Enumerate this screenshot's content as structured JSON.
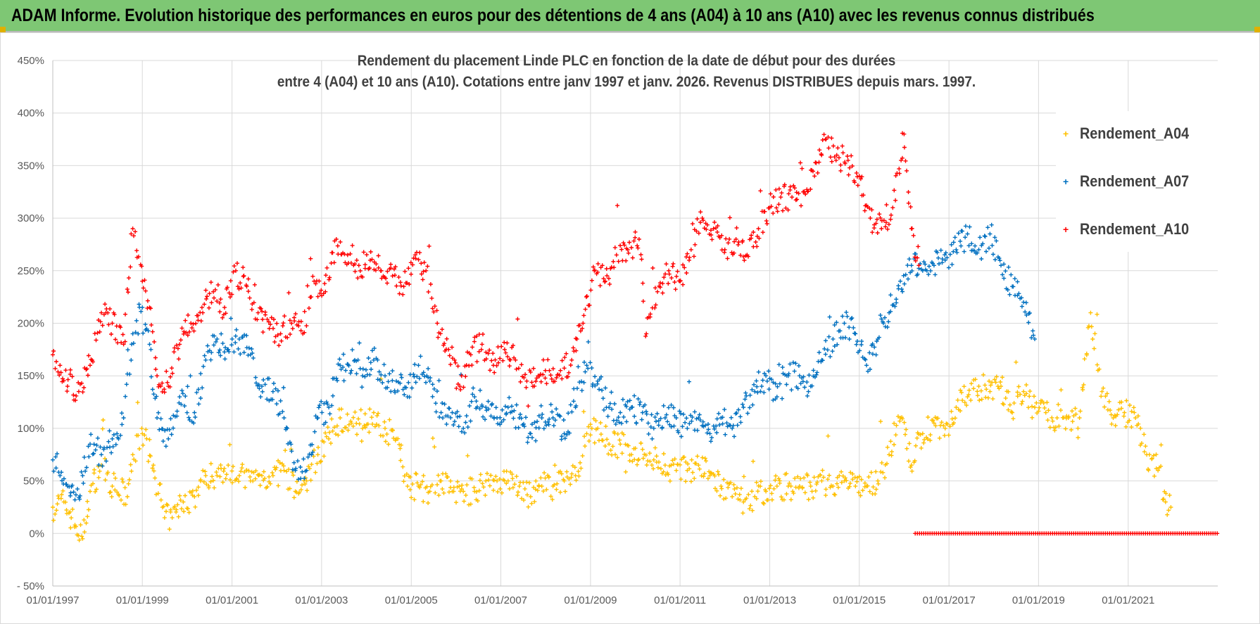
{
  "banner": {
    "title": "ADAM Informe. Evolution historique des performances en euros pour des détentions de 4 ans (A04) à 10 ans (A10) avec les revenus connus distribués"
  },
  "chart_data": {
    "type": "scatter",
    "title_line1": "Rendement du placement Linde PLC en fonction de la date de début pour des durées",
    "title_line2": "entre 4 (A04) et 10 ans (A10).  Cotations entre janv 1997 et janv. 2026. Revenus DISTRIBUES depuis mars. 1997.",
    "x_ticks": [
      "01/01/1997",
      "01/01/1999",
      "01/01/2001",
      "01/01/2003",
      "01/01/2005",
      "01/01/2007",
      "01/01/2009",
      "01/01/2011",
      "01/01/2013",
      "01/01/2015",
      "01/01/2017",
      "01/01/2019",
      "01/01/2021"
    ],
    "y_ticks": [
      "450%",
      "400%",
      "350%",
      "300%",
      "250%",
      "200%",
      "150%",
      "100%",
      "50%",
      "0%",
      "- 50%"
    ],
    "xlim": [
      "1997-01-01",
      "2023-01-01"
    ],
    "ylim": [
      -50,
      450
    ],
    "grid": true,
    "legend_position": "right",
    "series": [
      {
        "name": "Rendement_A04",
        "color": "#ffc000",
        "points": [
          [
            "1997-01-01",
            25
          ],
          [
            "1997-04-01",
            30
          ],
          [
            "1997-07-01",
            8
          ],
          [
            "1997-09-01",
            -5
          ],
          [
            "1997-11-01",
            40
          ],
          [
            "1998-02-01",
            65
          ],
          [
            "1998-05-01",
            45
          ],
          [
            "1998-09-01",
            35
          ],
          [
            "1998-10-15",
            75
          ],
          [
            "1999-01-01",
            95
          ],
          [
            "1999-04-01",
            65
          ],
          [
            "1999-07-01",
            15
          ],
          [
            "1999-09-01",
            15
          ],
          [
            "1999-12-01",
            30
          ],
          [
            "2000-03-01",
            35
          ],
          [
            "2000-06-01",
            55
          ],
          [
            "2000-09-01",
            55
          ],
          [
            "2000-12-01",
            65
          ],
          [
            "2001-03-01",
            55
          ],
          [
            "2001-06-01",
            50
          ],
          [
            "2001-09-01",
            55
          ],
          [
            "2001-12-01",
            55
          ],
          [
            "2002-03-01",
            60
          ],
          [
            "2002-06-01",
            40
          ],
          [
            "2002-09-01",
            50
          ],
          [
            "2002-12-01",
            75
          ],
          [
            "2003-03-01",
            90
          ],
          [
            "2003-06-01",
            110
          ],
          [
            "2003-09-01",
            105
          ],
          [
            "2003-12-01",
            100
          ],
          [
            "2004-03-01",
            115
          ],
          [
            "2004-06-01",
            100
          ],
          [
            "2004-09-01",
            90
          ],
          [
            "2004-12-01",
            45
          ],
          [
            "2005-03-01",
            45
          ],
          [
            "2005-06-01",
            40
          ],
          [
            "2005-09-01",
            50
          ],
          [
            "2005-12-01",
            40
          ],
          [
            "2006-03-01",
            40
          ],
          [
            "2006-06-01",
            40
          ],
          [
            "2006-09-01",
            50
          ],
          [
            "2006-12-01",
            50
          ],
          [
            "2007-03-01",
            50
          ],
          [
            "2007-06-01",
            45
          ],
          [
            "2007-09-01",
            35
          ],
          [
            "2007-12-01",
            45
          ],
          [
            "2008-03-01",
            45
          ],
          [
            "2008-06-01",
            50
          ],
          [
            "2008-09-01",
            55
          ],
          [
            "2008-12-01",
            95
          ],
          [
            "2009-03-01",
            100
          ],
          [
            "2009-06-01",
            85
          ],
          [
            "2009-09-01",
            85
          ],
          [
            "2009-12-01",
            75
          ],
          [
            "2010-03-01",
            80
          ],
          [
            "2010-06-01",
            70
          ],
          [
            "2010-09-01",
            65
          ],
          [
            "2010-12-01",
            60
          ],
          [
            "2011-03-01",
            60
          ],
          [
            "2011-06-01",
            65
          ],
          [
            "2011-09-01",
            55
          ],
          [
            "2011-12-01",
            45
          ],
          [
            "2012-03-01",
            35
          ],
          [
            "2012-06-01",
            30
          ],
          [
            "2012-09-01",
            35
          ],
          [
            "2012-12-01",
            40
          ],
          [
            "2013-03-01",
            45
          ],
          [
            "2013-06-01",
            45
          ],
          [
            "2013-09-01",
            45
          ],
          [
            "2013-12-01",
            45
          ],
          [
            "2014-03-01",
            50
          ],
          [
            "2014-06-01",
            45
          ],
          [
            "2014-09-01",
            50
          ],
          [
            "2014-12-01",
            45
          ],
          [
            "2015-03-01",
            45
          ],
          [
            "2015-06-01",
            50
          ],
          [
            "2015-09-01",
            75
          ],
          [
            "2015-12-01",
            110
          ],
          [
            "2016-03-01",
            65
          ],
          [
            "2016-06-01",
            95
          ],
          [
            "2016-09-01",
            105
          ],
          [
            "2016-12-01",
            100
          ],
          [
            "2017-03-01",
            120
          ],
          [
            "2017-06-01",
            130
          ],
          [
            "2017-09-01",
            140
          ],
          [
            "2017-12-01",
            135
          ],
          [
            "2018-03-01",
            140
          ],
          [
            "2018-06-01",
            115
          ],
          [
            "2018-09-01",
            135
          ],
          [
            "2018-12-01",
            120
          ],
          [
            "2019-03-01",
            115
          ],
          [
            "2019-06-01",
            110
          ],
          [
            "2019-09-01",
            110
          ],
          [
            "2019-12-01",
            110
          ],
          [
            "2020-03-01",
            210
          ],
          [
            "2020-06-01",
            135
          ],
          [
            "2020-09-01",
            110
          ],
          [
            "2020-12-01",
            115
          ],
          [
            "2021-03-01",
            110
          ],
          [
            "2021-06-01",
            75
          ],
          [
            "2021-09-01",
            60
          ],
          [
            "2021-11-01",
            30
          ],
          [
            "2021-12-15",
            25
          ]
        ]
      },
      {
        "name": "Rendement_A07",
        "color": "#0070c0",
        "points": [
          [
            "1997-01-01",
            70
          ],
          [
            "1997-03-01",
            55
          ],
          [
            "1997-05-01",
            45
          ],
          [
            "1997-07-01",
            32
          ],
          [
            "1997-09-01",
            55
          ],
          [
            "1997-11-01",
            85
          ],
          [
            "1998-02-01",
            75
          ],
          [
            "1998-05-01",
            90
          ],
          [
            "1998-08-01",
            110
          ],
          [
            "1998-10-15",
            190
          ],
          [
            "1999-01-01",
            215
          ],
          [
            "1999-03-01",
            180
          ],
          [
            "1999-05-01",
            110
          ],
          [
            "1999-08-01",
            90
          ],
          [
            "1999-11-01",
            130
          ],
          [
            "2000-03-01",
            115
          ],
          [
            "2000-06-01",
            165
          ],
          [
            "2000-09-01",
            185
          ],
          [
            "2000-12-01",
            175
          ],
          [
            "2001-03-01",
            185
          ],
          [
            "2001-06-01",
            170
          ],
          [
            "2001-09-01",
            140
          ],
          [
            "2001-12-01",
            135
          ],
          [
            "2002-03-01",
            110
          ],
          [
            "2002-06-01",
            60
          ],
          [
            "2002-09-01",
            60
          ],
          [
            "2002-12-01",
            110
          ],
          [
            "2003-03-01",
            120
          ],
          [
            "2003-06-01",
            160
          ],
          [
            "2003-09-01",
            155
          ],
          [
            "2003-12-01",
            150
          ],
          [
            "2004-03-01",
            165
          ],
          [
            "2004-06-01",
            150
          ],
          [
            "2004-09-01",
            145
          ],
          [
            "2004-12-01",
            130
          ],
          [
            "2005-03-01",
            160
          ],
          [
            "2005-06-01",
            145
          ],
          [
            "2005-09-01",
            115
          ],
          [
            "2005-12-01",
            115
          ],
          [
            "2006-03-01",
            100
          ],
          [
            "2006-06-01",
            130
          ],
          [
            "2006-09-01",
            120
          ],
          [
            "2006-12-01",
            110
          ],
          [
            "2007-03-01",
            120
          ],
          [
            "2007-06-01",
            110
          ],
          [
            "2007-09-01",
            95
          ],
          [
            "2007-12-01",
            110
          ],
          [
            "2008-03-01",
            110
          ],
          [
            "2008-06-01",
            95
          ],
          [
            "2008-09-01",
            120
          ],
          [
            "2008-12-01",
            160
          ],
          [
            "2009-03-01",
            145
          ],
          [
            "2009-06-01",
            120
          ],
          [
            "2009-09-01",
            115
          ],
          [
            "2009-12-01",
            120
          ],
          [
            "2010-03-01",
            115
          ],
          [
            "2010-06-01",
            100
          ],
          [
            "2010-09-01",
            110
          ],
          [
            "2010-12-01",
            110
          ],
          [
            "2011-03-01",
            100
          ],
          [
            "2011-06-01",
            110
          ],
          [
            "2011-09-01",
            95
          ],
          [
            "2011-12-01",
            110
          ],
          [
            "2012-03-01",
            100
          ],
          [
            "2012-06-01",
            120
          ],
          [
            "2012-09-01",
            135
          ],
          [
            "2012-12-01",
            150
          ],
          [
            "2013-03-01",
            130
          ],
          [
            "2013-06-01",
            150
          ],
          [
            "2013-09-01",
            150
          ],
          [
            "2013-12-01",
            140
          ],
          [
            "2014-03-01",
            165
          ],
          [
            "2014-06-01",
            185
          ],
          [
            "2014-09-01",
            200
          ],
          [
            "2014-12-01",
            190
          ],
          [
            "2015-03-01",
            160
          ],
          [
            "2015-06-01",
            185
          ],
          [
            "2015-09-01",
            210
          ],
          [
            "2015-12-01",
            240
          ],
          [
            "2016-03-01",
            255
          ],
          [
            "2016-06-01",
            250
          ],
          [
            "2016-09-01",
            255
          ],
          [
            "2016-12-01",
            260
          ],
          [
            "2017-03-01",
            270
          ],
          [
            "2017-06-01",
            285
          ],
          [
            "2017-09-01",
            270
          ],
          [
            "2017-12-01",
            285
          ],
          [
            "2018-03-01",
            255
          ],
          [
            "2018-06-01",
            235
          ],
          [
            "2018-09-01",
            220
          ],
          [
            "2018-12-01",
            185
          ]
        ]
      },
      {
        "name": "Rendement_A10",
        "color": "#ff0000",
        "points": [
          [
            "1997-01-01",
            170
          ],
          [
            "1997-03-01",
            160
          ],
          [
            "1997-05-01",
            140
          ],
          [
            "1997-08-01",
            135
          ],
          [
            "1997-11-01",
            160
          ],
          [
            "1998-02-01",
            210
          ],
          [
            "1998-05-01",
            200
          ],
          [
            "1998-08-01",
            180
          ],
          [
            "1998-10-15",
            290
          ],
          [
            "1999-01-01",
            240
          ],
          [
            "1999-03-01",
            215
          ],
          [
            "1999-05-01",
            150
          ],
          [
            "1999-08-01",
            140
          ],
          [
            "1999-11-01",
            180
          ],
          [
            "2000-02-01",
            200
          ],
          [
            "2000-05-01",
            215
          ],
          [
            "2000-08-01",
            230
          ],
          [
            "2000-11-01",
            215
          ],
          [
            "2001-02-01",
            250
          ],
          [
            "2001-05-01",
            235
          ],
          [
            "2001-08-01",
            210
          ],
          [
            "2001-11-01",
            195
          ],
          [
            "2002-02-01",
            190
          ],
          [
            "2002-05-01",
            200
          ],
          [
            "2002-08-01",
            190
          ],
          [
            "2002-11-01",
            240
          ],
          [
            "2003-02-01",
            230
          ],
          [
            "2003-05-01",
            280
          ],
          [
            "2003-08-01",
            265
          ],
          [
            "2003-11-01",
            255
          ],
          [
            "2004-02-01",
            260
          ],
          [
            "2004-05-01",
            250
          ],
          [
            "2004-08-01",
            245
          ],
          [
            "2004-11-01",
            235
          ],
          [
            "2005-02-01",
            265
          ],
          [
            "2005-05-01",
            250
          ],
          [
            "2005-08-01",
            200
          ],
          [
            "2005-11-01",
            175
          ],
          [
            "2006-02-01",
            140
          ],
          [
            "2006-05-01",
            170
          ],
          [
            "2006-08-01",
            180
          ],
          [
            "2006-11-01",
            160
          ],
          [
            "2007-02-01",
            175
          ],
          [
            "2007-05-01",
            165
          ],
          [
            "2007-08-01",
            145
          ],
          [
            "2007-11-01",
            150
          ],
          [
            "2008-02-01",
            155
          ],
          [
            "2008-05-01",
            155
          ],
          [
            "2008-08-01",
            165
          ],
          [
            "2008-11-01",
            200
          ],
          [
            "2009-02-01",
            250
          ],
          [
            "2009-05-01",
            240
          ],
          [
            "2009-08-01",
            265
          ],
          [
            "2009-11-01",
            270
          ],
          [
            "2010-02-01",
            280
          ],
          [
            "2010-04-01",
            190
          ],
          [
            "2010-07-01",
            230
          ],
          [
            "2010-10-01",
            250
          ],
          [
            "2011-01-01",
            240
          ],
          [
            "2011-04-01",
            270
          ],
          [
            "2011-07-01",
            300
          ],
          [
            "2011-10-01",
            290
          ],
          [
            "2012-01-01",
            270
          ],
          [
            "2012-04-01",
            280
          ],
          [
            "2012-07-01",
            265
          ],
          [
            "2012-10-01",
            290
          ],
          [
            "2013-01-01",
            310
          ],
          [
            "2013-04-01",
            320
          ],
          [
            "2013-07-01",
            320
          ],
          [
            "2013-10-01",
            325
          ],
          [
            "2014-01-01",
            340
          ],
          [
            "2014-04-01",
            375
          ],
          [
            "2014-07-01",
            360
          ],
          [
            "2014-10-01",
            355
          ],
          [
            "2015-01-01",
            340
          ],
          [
            "2015-04-01",
            300
          ],
          [
            "2015-07-01",
            290
          ],
          [
            "2015-10-01",
            310
          ],
          [
            "2016-01-01",
            380
          ],
          [
            "2016-03-01",
            290
          ],
          [
            "2016-05-01",
            255
          ]
        ]
      }
    ],
    "zero_band": {
      "name": "Rendement_A10",
      "color": "#ff0000",
      "x_start": "2016-04-01",
      "x_end": "2023-01-01",
      "value": 0
    }
  }
}
